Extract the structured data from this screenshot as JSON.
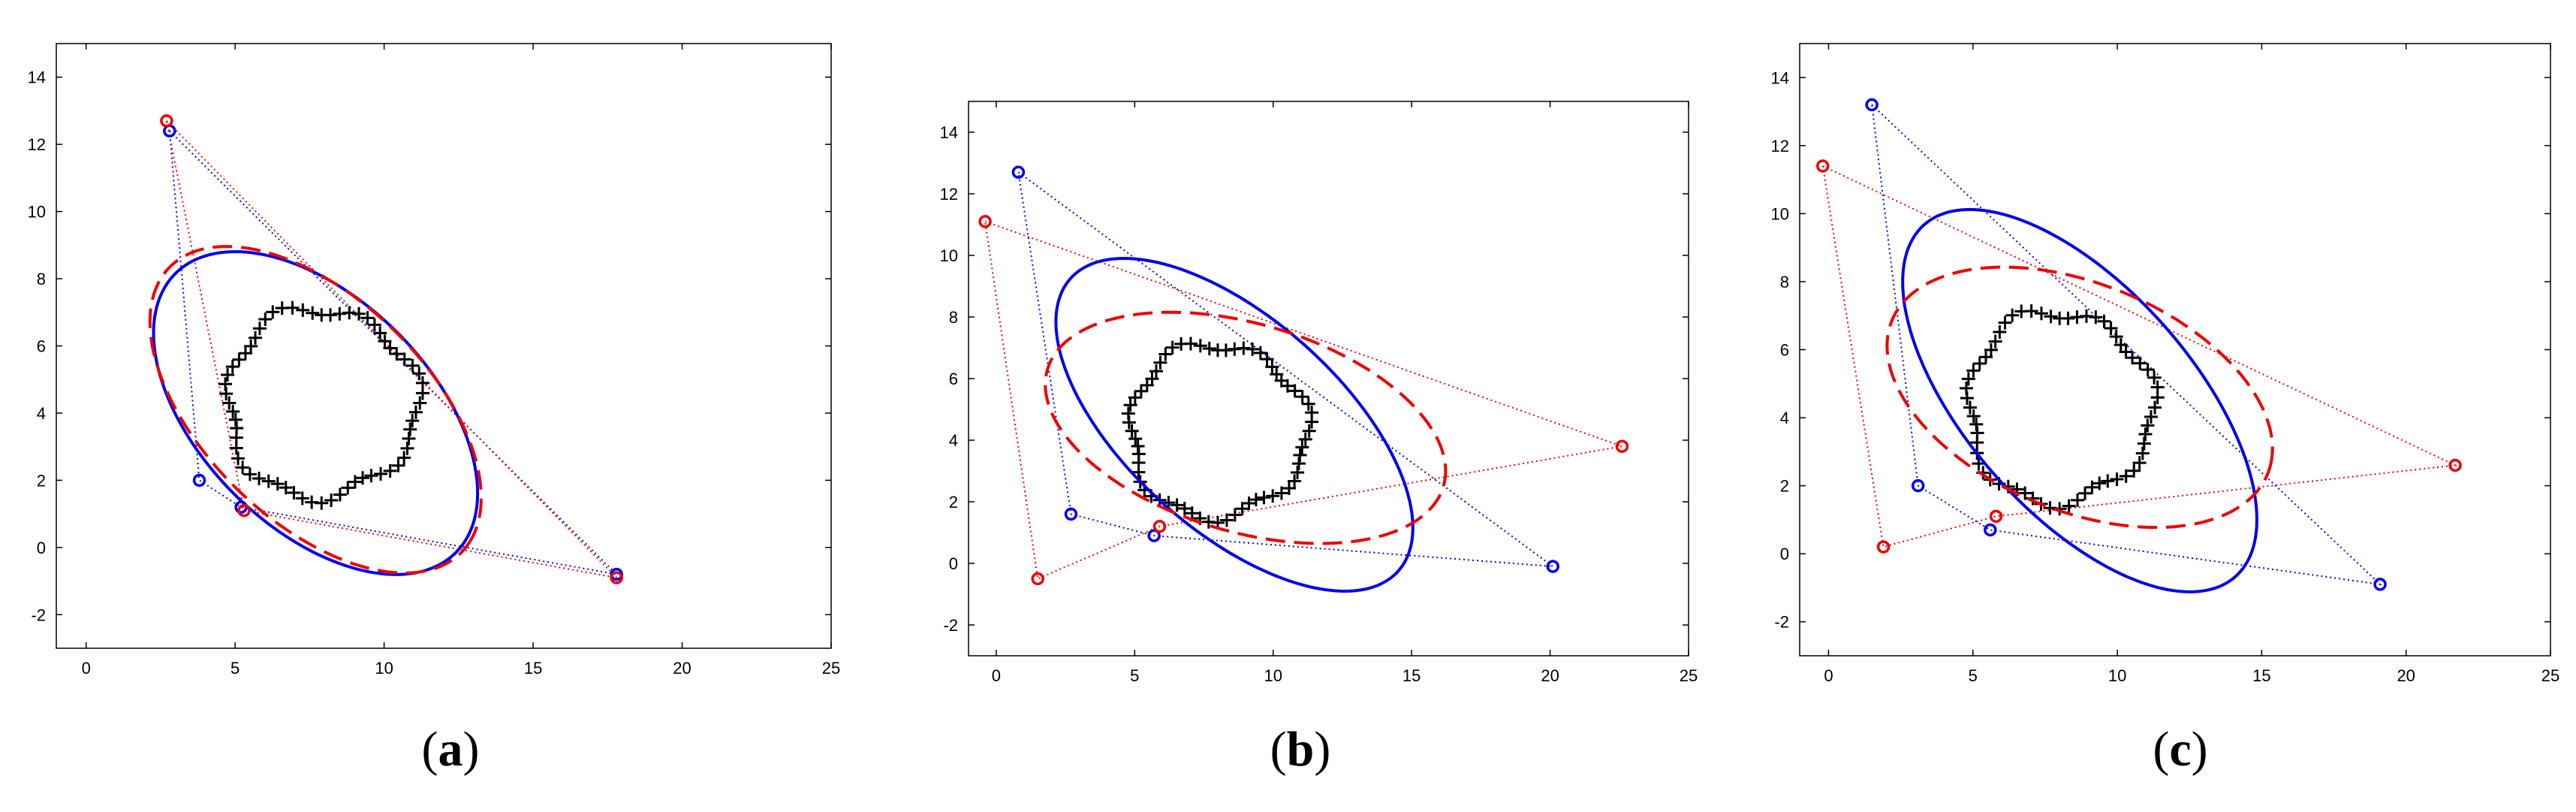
{
  "figure": {
    "captions": [
      "(a)",
      "(b)",
      "(c)"
    ],
    "caption_letters": [
      "a",
      "b",
      "c"
    ]
  },
  "colors": {
    "blue_series": "#0000ee",
    "red_series": "#ee0000",
    "points": "#000000",
    "frame": "#000000"
  },
  "chart_data": [
    {
      "type": "line",
      "panel": "a",
      "xlim": [
        -1,
        25
      ],
      "ylim": [
        -3,
        15
      ],
      "xticks": [
        0,
        5,
        10,
        15,
        20,
        25
      ],
      "yticks": [
        -2,
        0,
        2,
        4,
        6,
        8,
        10,
        12,
        14
      ],
      "grid": false,
      "series": [
        {
          "style": "blue-solid-ellipse",
          "center": [
            7.7,
            4.0
          ],
          "semi_axes": [
            6.3,
            3.6
          ],
          "angle_deg": -38
        },
        {
          "style": "red-dashed-ellipse",
          "center": [
            7.7,
            4.1
          ],
          "semi_axes": [
            6.5,
            3.5
          ],
          "angle_deg": -38
        },
        {
          "style": "blue-dotted-polygon",
          "vertices": [
            [
              2.8,
              12.4
            ],
            [
              17.8,
              -0.8
            ],
            [
              5.2,
              1.2
            ],
            [
              3.8,
              2.0
            ]
          ]
        },
        {
          "style": "red-dotted-polygon",
          "vertices": [
            [
              2.7,
              12.7
            ],
            [
              17.8,
              -0.9
            ],
            [
              5.3,
              1.1
            ]
          ]
        }
      ],
      "points": {
        "marker": "+",
        "shape": "circle",
        "center": [
          7.9,
          4.3
        ],
        "radii": [
          3.2,
          2.8
        ],
        "count": 64
      }
    },
    {
      "type": "line",
      "panel": "b",
      "xlim": [
        -1,
        25
      ],
      "ylim": [
        -3,
        15
      ],
      "xticks": [
        0,
        5,
        10,
        15,
        20,
        25
      ],
      "yticks": [
        -2,
        0,
        2,
        4,
        6,
        8,
        10,
        12,
        14
      ],
      "grid": false,
      "series": [
        {
          "style": "blue-solid-ellipse",
          "center": [
            8.6,
            4.5
          ],
          "semi_axes": [
            7.6,
            3.6
          ],
          "angle_deg": -37
        },
        {
          "style": "red-dashed-ellipse",
          "center": [
            9.0,
            4.4
          ],
          "semi_axes": [
            7.4,
            3.4
          ],
          "angle_deg": -14
        },
        {
          "style": "blue-dotted-polygon",
          "vertices": [
            [
              0.8,
              12.7
            ],
            [
              20.1,
              -0.1
            ],
            [
              5.7,
              0.9
            ],
            [
              2.7,
              1.6
            ]
          ]
        },
        {
          "style": "red-dotted-polygon",
          "vertices": [
            [
              -0.4,
              11.1
            ],
            [
              22.6,
              3.8
            ],
            [
              5.9,
              1.2
            ],
            [
              1.5,
              -0.5
            ]
          ]
        }
      ],
      "points": {
        "marker": "+",
        "shape": "circle",
        "center": [
          8.0,
          4.3
        ],
        "radii": [
          3.2,
          2.8
        ],
        "count": 64
      }
    },
    {
      "type": "line",
      "panel": "c",
      "xlim": [
        -1,
        25
      ],
      "ylim": [
        -3,
        15
      ],
      "xticks": [
        0,
        5,
        10,
        15,
        20,
        25
      ],
      "yticks": [
        -2,
        0,
        2,
        4,
        6,
        8,
        10,
        12,
        14
      ],
      "grid": false,
      "series": [
        {
          "style": "blue-solid-ellipse",
          "center": [
            8.7,
            4.5
          ],
          "semi_axes": [
            7.5,
            3.6
          ],
          "angle_deg": -41
        },
        {
          "style": "red-dashed-ellipse",
          "center": [
            8.7,
            4.6
          ],
          "semi_axes": [
            6.9,
            3.4
          ],
          "angle_deg": -17
        },
        {
          "style": "blue-dotted-polygon",
          "vertices": [
            [
              1.5,
              13.2
            ],
            [
              19.1,
              -0.9
            ],
            [
              5.6,
              0.7
            ],
            [
              3.1,
              2.0
            ]
          ]
        },
        {
          "style": "red-dotted-polygon",
          "vertices": [
            [
              -0.2,
              11.4
            ],
            [
              21.7,
              2.6
            ],
            [
              5.8,
              1.1
            ],
            [
              1.9,
              0.2
            ]
          ]
        }
      ],
      "points": {
        "marker": "+",
        "shape": "circle",
        "center": [
          8.0,
          4.3
        ],
        "radii": [
          3.2,
          2.8
        ],
        "count": 64
      }
    }
  ]
}
